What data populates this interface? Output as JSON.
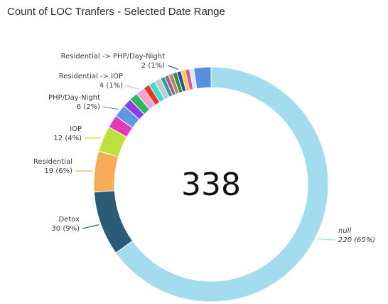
{
  "title": "Count of LOC Tranfers - Selected Date Range",
  "chart_data": {
    "type": "pie",
    "variant": "donut",
    "center_label": "338",
    "total": 338,
    "slices": [
      {
        "name": "null",
        "value": 220,
        "label": "220 (65%)",
        "color": "#a3dcef",
        "italic": true
      },
      {
        "name": "Detox",
        "value": 30,
        "label": "30 (9%)",
        "color": "#2a5b77"
      },
      {
        "name": "Residential",
        "value": 19,
        "label": "19 (6%)",
        "color": "#f6ab55"
      },
      {
        "name": "IOP",
        "value": 12,
        "label": "12 (4%)",
        "color": "#bde13b"
      },
      {
        "name": "",
        "value": 6,
        "label": "",
        "color": "#e43ab5"
      },
      {
        "name": "PHP/Day-Night",
        "value": 6,
        "label": "6 (2%)",
        "color": "#5f96e6"
      },
      {
        "name": "",
        "value": 4,
        "label": "",
        "color": "#8f3de8"
      },
      {
        "name": "",
        "value": 4,
        "label": "",
        "color": "#29b864"
      },
      {
        "name": "Residential -> IOP",
        "value": 4,
        "label": "4 (1%)",
        "color": "#f4a3d2"
      },
      {
        "name": "",
        "value": 3,
        "label": "",
        "color": "#e83528"
      },
      {
        "name": "",
        "value": 3,
        "label": "",
        "color": "#39e1cc"
      },
      {
        "name": "",
        "value": 3,
        "label": "",
        "color": "#c8c8c8"
      },
      {
        "name": "",
        "value": 2,
        "label": "",
        "color": "#1e9fa5"
      },
      {
        "name": "",
        "value": 2,
        "label": "",
        "color": "#b05a86"
      },
      {
        "name": "",
        "value": 2,
        "label": "",
        "color": "#a98d72"
      },
      {
        "name": "",
        "value": 2,
        "label": "",
        "color": "#2e8f3d"
      },
      {
        "name": "Residential -> PHP/Day-Night",
        "value": 2,
        "label": "2 (1%)",
        "color": "#2d4d9a"
      },
      {
        "name": "",
        "value": 2,
        "label": "",
        "color": "#f0d241"
      },
      {
        "name": "",
        "value": 2,
        "label": "",
        "color": "#ea4c9e"
      },
      {
        "name": "",
        "value": 2,
        "label": "",
        "color": "#d1ecf8"
      },
      {
        "name": "",
        "value": 8,
        "label": "",
        "color": "#5a8fe0"
      }
    ]
  }
}
